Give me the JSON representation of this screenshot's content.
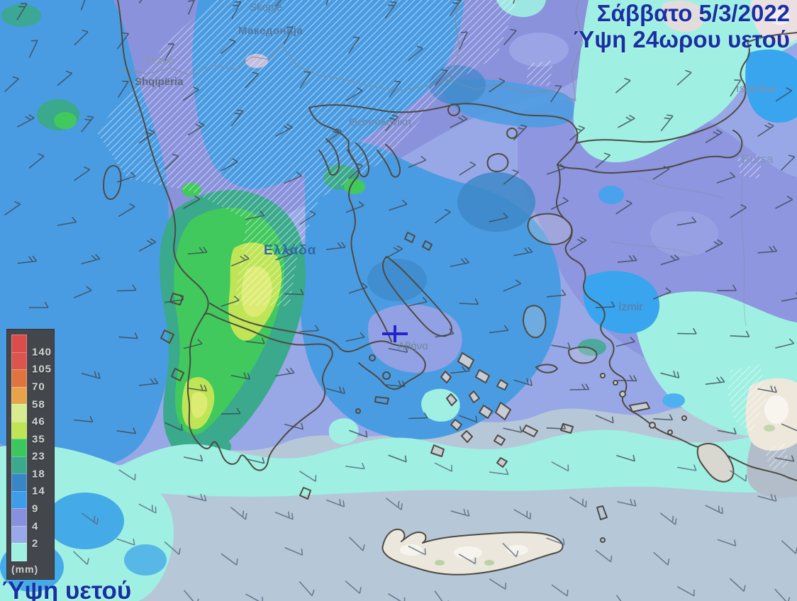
{
  "header": {
    "title_line1": "Σάββατο 5/3/2022",
    "title_line2": "Ύψη 24ωρου υετού",
    "title_color": "#1830a2"
  },
  "footer": {
    "caption": "Ύψη υετού"
  },
  "legend": {
    "unit": "(mm)",
    "values": [
      140,
      105,
      70,
      58,
      46,
      35,
      23,
      18,
      14,
      9,
      4,
      2
    ],
    "colors": [
      "#d94d4d",
      "#dc544e",
      "#e0743f",
      "#e6a34c",
      "#d6ec8e",
      "#bfe556",
      "#3cc75e",
      "#3aa98c",
      "#3a86c4",
      "#3f9ce8",
      "#8690dc",
      "#98a9e8",
      "#9ff0e0"
    ]
  },
  "map": {
    "labels": [
      {
        "text": "Skopje"
      },
      {
        "text": "Македонија"
      },
      {
        "text": "Tirane"
      },
      {
        "text": "Shqipëria"
      },
      {
        "text": "Θεσσαλονίκη"
      },
      {
        "text": "Ελλάδα"
      },
      {
        "text": "Αθήνα"
      },
      {
        "text": "İzmir"
      },
      {
        "text": "Istanbul"
      },
      {
        "text": "Bursa"
      }
    ],
    "marker": {
      "symbol": "+",
      "color": "#2323cf"
    },
    "sea_color": "#b6c7d8",
    "land_color": "#ece7dd"
  }
}
